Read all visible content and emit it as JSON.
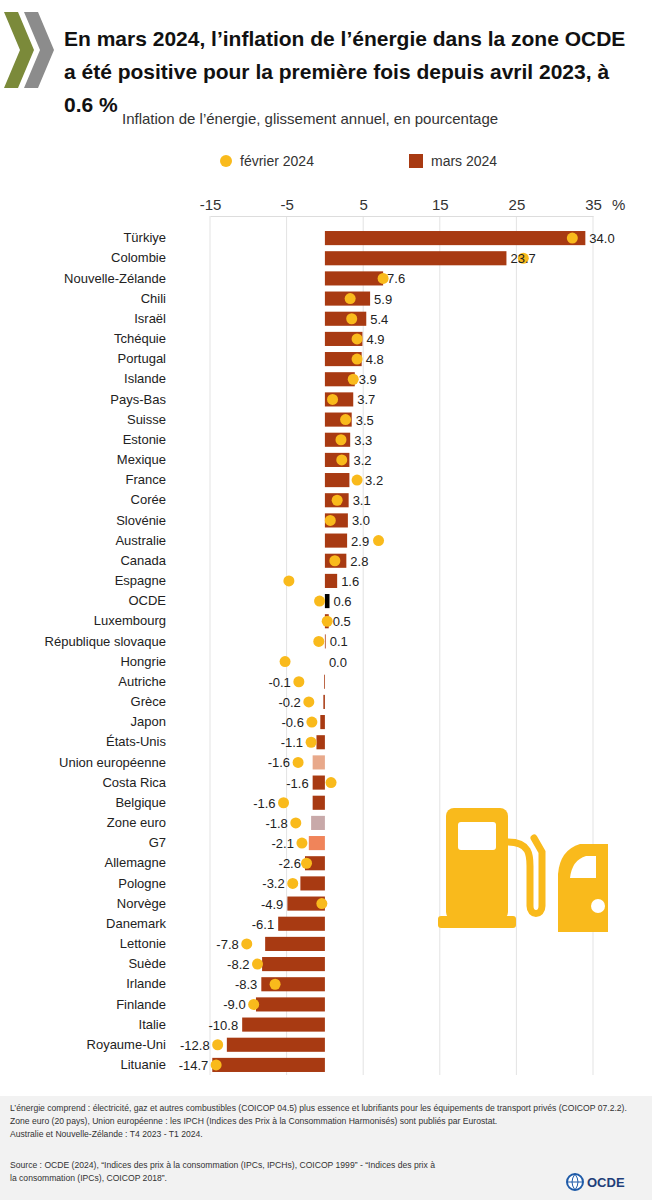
{
  "chart_data": {
    "type": "bar",
    "orientation": "horizontal",
    "title": "En mars 2024, l’inflation de l’énergie dans la zone OCDE a été positive pour la première fois depuis avril 2023, à 0.6 %",
    "subtitle": "Inflation de l’énergie, glissement annuel, en pourcentage",
    "xlabel": "%",
    "categories": [
      "Türkiye",
      "Colombie",
      "Nouvelle-Zélande",
      "Chili",
      "Israël",
      "Tchéquie",
      "Portugal",
      "Islande",
      "Pays-Bas",
      "Suisse",
      "Estonie",
      "Mexique",
      "France",
      "Corée",
      "Slovénie",
      "Australie",
      "Canada",
      "Espagne",
      "OCDE",
      "Luxembourg",
      "République slovaque",
      "Hongrie",
      "Autriche",
      "Grèce",
      "Japon",
      "États-Unis",
      "Union européenne",
      "Costa Rica",
      "Belgique",
      "Zone euro",
      "G7",
      "Allemagne",
      "Pologne",
      "Norvège",
      "Danemark",
      "Lettonie",
      "Suède",
      "Irlande",
      "Finlande",
      "Italie",
      "Royaume-Uni",
      "Lituanie"
    ],
    "series": [
      {
        "name": "février 2024",
        "type": "scatter",
        "marker": "circle",
        "color": "#f9ba1c",
        "values": [
          32.3,
          25.9,
          7.6,
          3.3,
          3.5,
          4.2,
          4.2,
          3.7,
          1.0,
          2.7,
          2.1,
          2.2,
          4.2,
          1.6,
          0.7,
          7.0,
          1.3,
          -4.7,
          -0.7,
          0.3,
          -0.8,
          -5.2,
          -3.4,
          -2.1,
          -1.7,
          -1.8,
          -3.5,
          0.8,
          -5.4,
          -3.8,
          -3.0,
          -2.4,
          -4.2,
          -0.4,
          null,
          -10.2,
          -8.8,
          -6.5,
          -9.3,
          null,
          -14.0,
          -14.2
        ]
      },
      {
        "name": "mars 2024",
        "type": "bar",
        "color": "#a83a12",
        "colors": [
          "#a83a12",
          "#a83a12",
          "#a83a12",
          "#a83a12",
          "#a83a12",
          "#a83a12",
          "#a83a12",
          "#a83a12",
          "#a83a12",
          "#a83a12",
          "#a83a12",
          "#a83a12",
          "#a83a12",
          "#a83a12",
          "#a83a12",
          "#a83a12",
          "#a83a12",
          "#a83a12",
          "#000000",
          "#a83a12",
          "#a83a12",
          "#a83a12",
          "#a83a12",
          "#a83a12",
          "#a83a12",
          "#a83a12",
          "#e8a98b",
          "#a83a12",
          "#a83a12",
          "#c8a9a9",
          "#f0845a",
          "#a83a12",
          "#a83a12",
          "#a83a12",
          "#a83a12",
          "#a83a12",
          "#a83a12",
          "#a83a12",
          "#a83a12",
          "#a83a12",
          "#a83a12",
          "#a83a12"
        ],
        "values": [
          34.0,
          23.7,
          7.6,
          5.9,
          5.4,
          4.9,
          4.8,
          3.9,
          3.7,
          3.5,
          3.3,
          3.2,
          3.2,
          3.1,
          3.0,
          2.9,
          2.8,
          1.6,
          0.6,
          0.5,
          0.1,
          0.0,
          -0.1,
          -0.2,
          -0.6,
          -1.1,
          -1.6,
          -1.6,
          -1.6,
          -1.8,
          -2.1,
          -2.6,
          -3.2,
          -4.9,
          -6.1,
          -7.8,
          -8.2,
          -8.3,
          -9.0,
          -10.8,
          -12.8,
          -14.7
        ],
        "value_labels": [
          "34.0",
          "23.7",
          "7.6",
          "5.9",
          "5.4",
          "4.9",
          "4.8",
          "3.9",
          "3.7",
          "3.5",
          "3.3",
          "3.2",
          "3.2",
          "3.1",
          "3.0",
          "2.9",
          "2.8",
          "1.6",
          "0.6",
          "0.5",
          "0.1",
          "0.0",
          "-0.1",
          "-0.2",
          "-0.6",
          "-1.1",
          "-1.6",
          "-1.6",
          "-1.6",
          "-1.8",
          "-2.1",
          "-2.6",
          "-3.2",
          "-4.9",
          "-6.1",
          "-7.8",
          "-8.2",
          "-8.3",
          "-9.0",
          "-10.8",
          "-12.8",
          "-14.7"
        ]
      }
    ],
    "xlim": [
      -15,
      35
    ],
    "xticks": [
      -15,
      -5,
      5,
      15,
      25,
      35
    ],
    "grid": true,
    "legend": "top",
    "data_labels": true,
    "notes": [
      "L’énergie comprend : électricité, gaz et autres combustibles (COICOP 04.5) plus essence et lubrifiants pour les équipements de transport privés (COICOP 07.2.2).",
      "Zone euro (20 pays), Union européenne : les IPCH (Indices des Prix à la Consommation Harmonisés) sont publiés par Eurostat.",
      "Australie et Nouvelle-Zélande : T4 2023 - T1 2024."
    ],
    "source": [
      "Source : OCDE (2024), “Indices des prix à la consommation (IPCs, IPCHs), COICOP 1999” - “Indices des prix à",
      "la consommation (IPCs), COICOP 2018”."
    ],
    "logo": "OCDE"
  }
}
